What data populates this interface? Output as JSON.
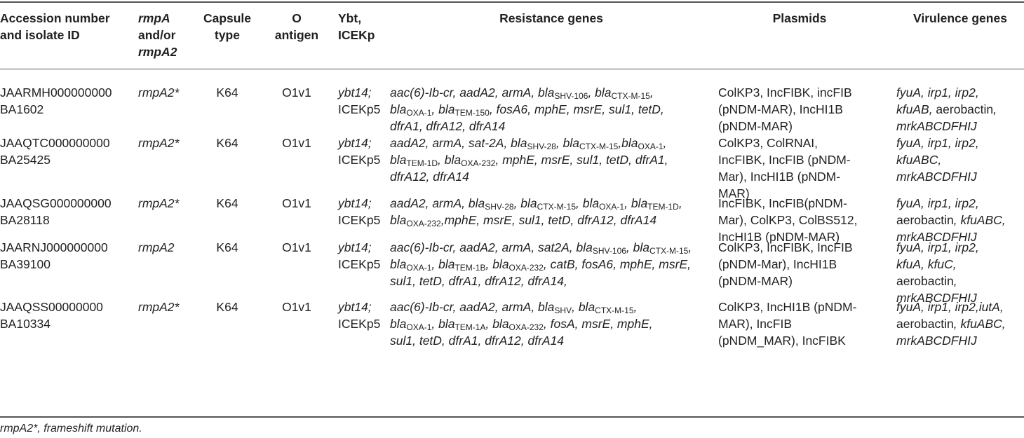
{
  "headers": {
    "accession": [
      "Accession number",
      "and isolate ID"
    ],
    "rmpa": [
      "rmpA",
      "and/or",
      "rmpA2"
    ],
    "capsule": [
      "Capsule",
      "type"
    ],
    "oantigen": [
      "O",
      "antigen"
    ],
    "ybt": [
      "Ybt,",
      "ICEKp"
    ],
    "resistance": "Resistance genes",
    "plasmids": "Plasmids",
    "virulence": "Virulence genes"
  },
  "rows": [
    {
      "accession": [
        "JAARMH000000000",
        "BA1602"
      ],
      "rmpa": "rmpA2*",
      "capsule": "K64",
      "oantigen": "O1v1",
      "ybt": [
        "ybt14;",
        "ICEKp5"
      ],
      "plasmids": [
        "ColKP3, IncFIBK, incFIB",
        "(pNDM-MAR), IncHI1B",
        "(pNDM-MAR)"
      ],
      "virulence": [
        "fyuA, irp1, irp2,",
        "kfuAB, aerobactin,",
        "mrkABCDFHIJ"
      ]
    },
    {
      "accession": [
        "JAAQTC000000000",
        "BA25425"
      ],
      "rmpa": "rmpA2*",
      "capsule": "K64",
      "oantigen": "O1v1",
      "ybt": [
        "ybt14;",
        "ICEKp5"
      ],
      "plasmids": [
        "ColKP3, ColRNAI,",
        "IncFIBK, IncFIB (pNDM-",
        "Mar), IncHI1B (pNDM-",
        "MAR)"
      ],
      "virulence": [
        "fyuA, irp1, irp2,",
        "kfuABC,",
        "mrkABCDFHIJ"
      ]
    },
    {
      "accession": [
        "JAAQSG000000000",
        "BA28118"
      ],
      "rmpa": "rmpA2*",
      "capsule": "K64",
      "oantigen": "O1v1",
      "ybt": [
        "ybt14;",
        "ICEKp5"
      ],
      "plasmids": [
        "IncFIBK, IncFIB(pNDM-",
        "Mar), ColKP3, ColBS512,",
        "IncHI1B (pNDM-MAR)"
      ],
      "virulence": [
        "fyuA, irp1, irp2,",
        "aerobactin, kfuABC,",
        "mrkABCDFHIJ"
      ]
    },
    {
      "accession": [
        "JAARNJ000000000",
        "BA39100"
      ],
      "rmpa": "rmpA2",
      "capsule": "K64",
      "oantigen": "O1v1",
      "ybt": [
        "ybt14;",
        "ICEKp5"
      ],
      "plasmids": [
        "ColKP3, IncFIBK, IncFIB",
        "(pNDM-Mar), IncHI1B",
        "(pNDM-MAR)"
      ],
      "virulence": [
        "fyuA, irp1, irp2,",
        "kfuA, kfuC,",
        "aerobactin,",
        "mrkABCDFHIJ"
      ]
    },
    {
      "accession": [
        "JAAQSS00000000",
        "BA10334"
      ],
      "rmpa": "rmpA2*",
      "capsule": "K64",
      "oantigen": "O1v1",
      "ybt": [
        "ybt14;",
        "ICEKp5"
      ],
      "plasmids": [
        "ColKP3, IncHI1B (pNDM-",
        "MAR), IncFIB",
        "(pNDM_MAR), IncFIBK"
      ],
      "virulence": [
        "fyuA, irp1, irp2,iutA,",
        "aerobactin, kfuABC,",
        "mrkABCDFHIJ"
      ]
    }
  ],
  "resistance": [
    [
      [
        [
          "aac(6)-Ib-cr, aadA2, armA, bla",
          "SHV-106"
        ],
        [
          ", bla",
          "CTX-M-15"
        ],
        [
          ",",
          ""
        ]
      ],
      [
        [
          "bla",
          "OXA-1"
        ],
        [
          ", bla",
          "TEM-150"
        ],
        [
          ", fosA6, mphE, msrE, sul1, tetD,",
          ""
        ]
      ],
      [
        [
          "dfrA1, dfrA12, dfrA14",
          ""
        ]
      ]
    ],
    [
      [
        [
          "aadA2, armA, sat-2A, bla",
          "SHV-28"
        ],
        [
          ", bla",
          "CTX-M-15"
        ],
        [
          ",bla",
          "OXA-1"
        ],
        [
          ",",
          ""
        ]
      ],
      [
        [
          "bla",
          "TEM-1D"
        ],
        [
          ", bla",
          "OXA-232"
        ],
        [
          ", mphE, msrE, sul1, tetD, dfrA1,",
          ""
        ]
      ],
      [
        [
          "dfrA12, dfrA14",
          ""
        ]
      ]
    ],
    [
      [
        [
          "aadA2, armA, bla",
          "SHV-28"
        ],
        [
          ", bla",
          "CTX-M-15"
        ],
        [
          ", bla",
          "OXA-1"
        ],
        [
          ", bla",
          "TEM-1D"
        ],
        [
          ",",
          ""
        ]
      ],
      [
        [
          "bla",
          "OXA-232"
        ],
        [
          ",mphE, msrE, sul1, tetD, dfrA12, dfrA14",
          ""
        ]
      ]
    ],
    [
      [
        [
          "aac(6)-Ib-cr, aadA2, armA, sat2A, bla",
          "SHV-106"
        ],
        [
          ", bla",
          "CTX-M-15"
        ],
        [
          ",",
          ""
        ]
      ],
      [
        [
          "bla",
          "OXA-1"
        ],
        [
          ", bla",
          "TEM-1B"
        ],
        [
          ", bla",
          "OXA-232"
        ],
        [
          ", catB, fosA6, mphE, msrE,",
          ""
        ]
      ],
      [
        [
          "sul1, tetD, dfrA1, dfrA12, dfrA14,",
          ""
        ]
      ]
    ],
    [
      [
        [
          "aac(6)-Ib-cr, aadA2, armA, bla",
          "SHV"
        ],
        [
          ", bla",
          "CTX-M-15"
        ],
        [
          ",",
          ""
        ]
      ],
      [
        [
          "bla",
          "OXA-1"
        ],
        [
          ", bla",
          "TEM-1A"
        ],
        [
          ", bla",
          "OXA-232"
        ],
        [
          ", fosA, msrE, mphE,",
          ""
        ]
      ],
      [
        [
          "sul1, tetD, dfrA1, dfrA12, dfrA14",
          ""
        ]
      ]
    ]
  ],
  "footnote": "rmpA2*, frameshift mutation."
}
